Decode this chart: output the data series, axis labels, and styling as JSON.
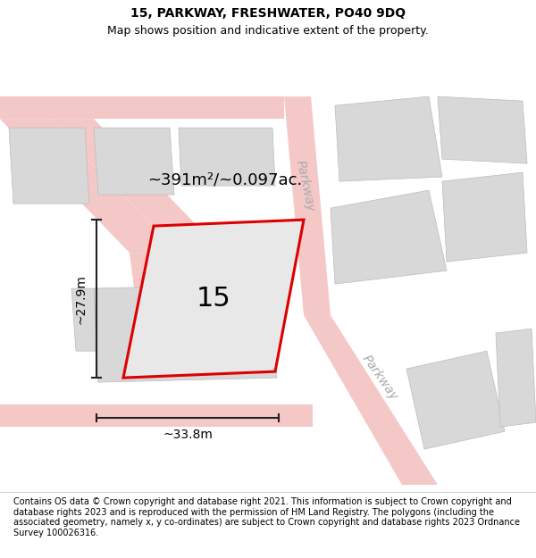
{
  "title": "15, PARKWAY, FRESHWATER, PO40 9DQ",
  "subtitle": "Map shows position and indicative extent of the property.",
  "footer": "Contains OS data © Crown copyright and database right 2021. This information is subject to Crown copyright and database rights 2023 and is reproduced with the permission of HM Land Registry. The polygons (including the associated geometry, namely x, y co-ordinates) are subject to Crown copyright and database rights 2023 Ordnance Survey 100026316.",
  "map_bg": "#ffffff",
  "road_fill_color": "#f5c8c8",
  "road_edge_color": "#e8a0a0",
  "block_color": "#d8d8d8",
  "block_edge_color": "#bbbbbb",
  "highlight_color": "#dd0000",
  "highlight_fill": "#e8e8e8",
  "road_label_color": "#aaaaaa",
  "dim_color": "#222222",
  "area_text": "~391m²/~0.097ac.",
  "number_text": "15",
  "dim_width": "~33.8m",
  "dim_height": "~27.9m",
  "road_name_upper": "Parkway",
  "road_name_lower": "Parkway",
  "figsize": [
    6.0,
    6.25
  ],
  "dpi": 100,
  "title_fontsize": 10,
  "subtitle_fontsize": 9,
  "footer_fontsize": 7
}
